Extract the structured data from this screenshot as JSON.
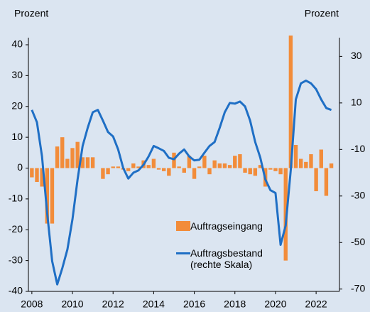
{
  "chart_data": {
    "type": "bar_line",
    "y_label": "Prozent",
    "y2_label": "Prozent",
    "x": [
      2008,
      2008.25,
      2008.5,
      2008.75,
      2009,
      2009.25,
      2009.5,
      2009.75,
      2010,
      2010.25,
      2010.5,
      2010.75,
      2011,
      2011.25,
      2011.5,
      2011.75,
      2012,
      2012.25,
      2012.5,
      2012.75,
      2013,
      2013.25,
      2013.5,
      2013.75,
      2014,
      2014.25,
      2014.5,
      2014.75,
      2015,
      2015.25,
      2015.5,
      2015.75,
      2016,
      2016.25,
      2016.5,
      2016.75,
      2017,
      2017.25,
      2017.5,
      2017.75,
      2018,
      2018.25,
      2018.5,
      2018.75,
      2019,
      2019.25,
      2019.5,
      2019.75,
      2020,
      2020.25,
      2020.5,
      2020.75,
      2021,
      2021.25,
      2021.5,
      2021.75,
      2022,
      2022.25,
      2022.5,
      2022.75
    ],
    "series": [
      {
        "name": "Auftragseingang",
        "type": "bar",
        "color": "#f28c3a",
        "values": [
          -3,
          -4.5,
          -6,
          -18,
          -18,
          7,
          10,
          3,
          6.5,
          8.5,
          3.5,
          3.5,
          3.5,
          0,
          -3.5,
          -2,
          0.5,
          0.5,
          -0.5,
          -1,
          1.5,
          0.5,
          2.5,
          1,
          3,
          -0.5,
          -1,
          -2.5,
          5,
          0.5,
          -1.5,
          4,
          -3.5,
          0.5,
          4,
          -2,
          2.5,
          1.5,
          1.5,
          1,
          4,
          4.5,
          -1.5,
          -2,
          -2.5,
          1,
          -6,
          -0.5,
          -1,
          -2,
          -30,
          43,
          7.5,
          3,
          2,
          4.5,
          -7.5,
          6,
          -9,
          1.5
        ]
      },
      {
        "name": "Auftragsbestand (rechte Skala)",
        "type": "line",
        "axis": "y2",
        "color": "#1f6fc5",
        "values": [
          7,
          1.7,
          -13,
          -37,
          -58,
          -68,
          -61,
          -53,
          -40,
          -23,
          -8.5,
          -0.7,
          6,
          7,
          2.4,
          -2.5,
          -4.4,
          -10,
          -18,
          -22.5,
          -20,
          -19,
          -16.6,
          -13,
          -8.5,
          -9.5,
          -10.6,
          -13.6,
          -14.2,
          -11.8,
          -10,
          -13,
          -14.7,
          -14.4,
          -11.4,
          -8.5,
          -6.8,
          -0.7,
          6,
          10,
          9.7,
          10.6,
          8.5,
          2.4,
          -6.8,
          -13.5,
          -22.9,
          -27.5,
          -28.7,
          -51,
          -42.7,
          -19,
          11.5,
          18.4,
          19.6,
          18.4,
          15.9,
          11.5,
          7.8,
          7
        ]
      }
    ],
    "xlim": [
      2007.83,
      2023.15
    ],
    "xticks": [
      2008,
      2010,
      2012,
      2014,
      2016,
      2018,
      2020,
      2022
    ],
    "ylim": [
      -40,
      40
    ],
    "yticks": [
      -40,
      -30,
      -20,
      -10,
      0,
      10,
      20,
      30,
      40
    ],
    "y2lim": [
      -71,
      35
    ],
    "y2ticks": [
      -70,
      -50,
      -30,
      -10,
      10,
      30
    ]
  }
}
